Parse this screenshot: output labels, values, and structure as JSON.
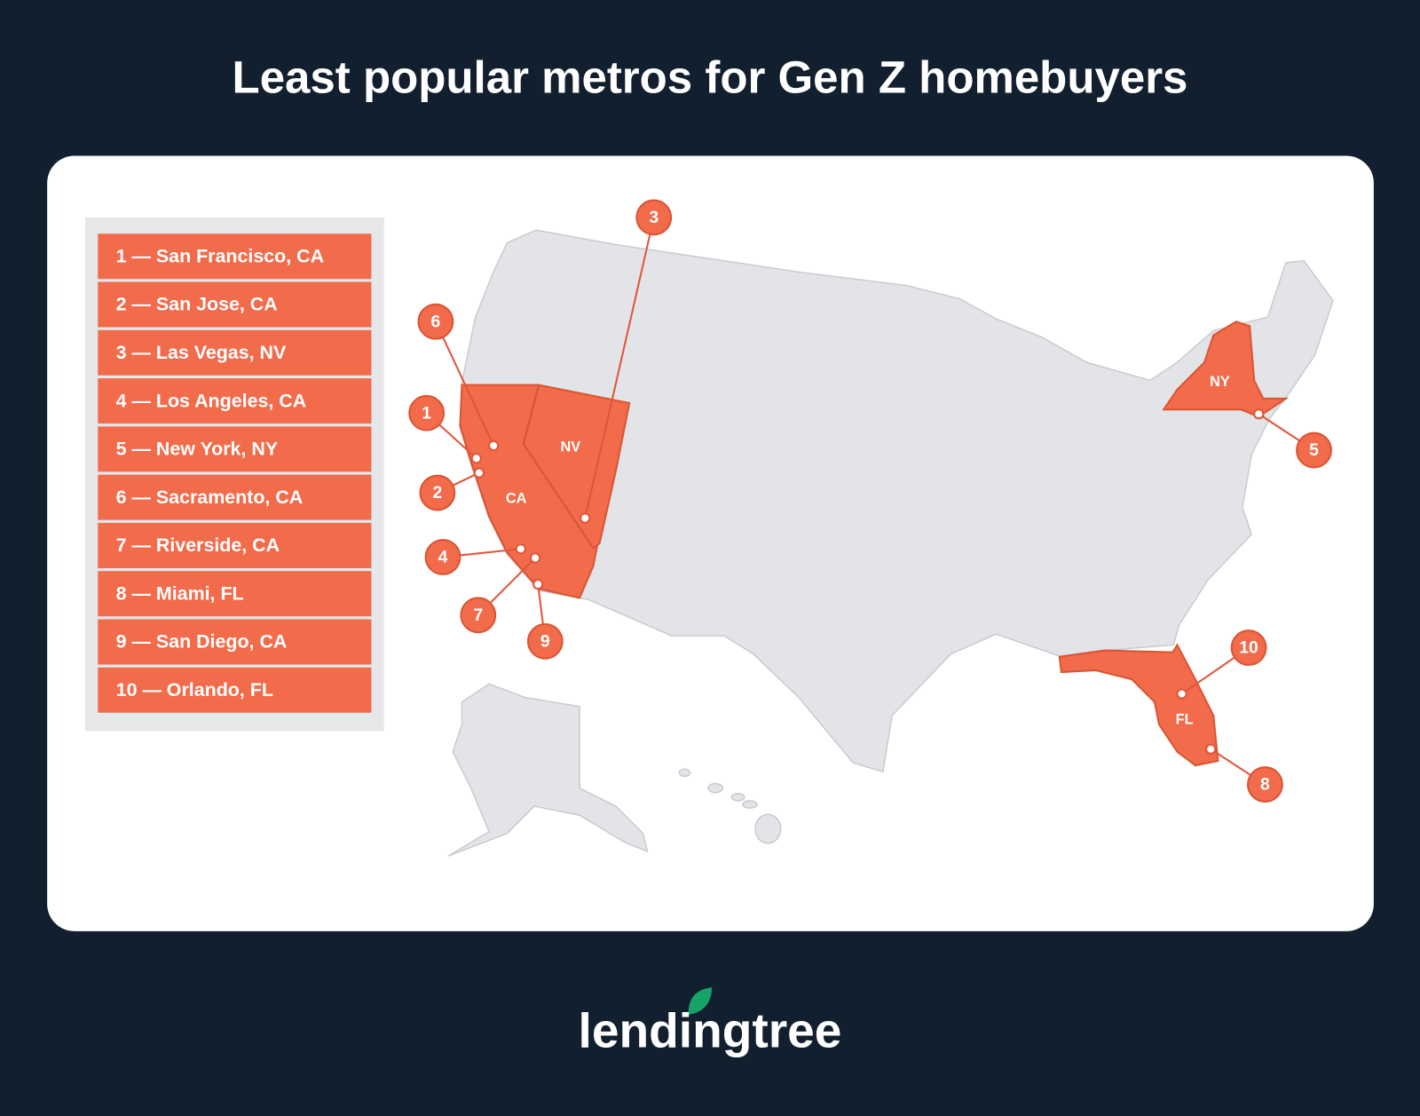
{
  "title": "Least popular metros for Gen Z homebuyers",
  "list": [
    "1 — San Francisco, CA",
    "2 — San Jose, CA",
    "3 — Las Vegas, NV",
    "4 — Los Angeles, CA",
    "5 — New York, NY",
    "6 — Sacramento, CA",
    "7 — Riverside, CA",
    "8 — Miami, FL",
    "9 — San Diego, CA",
    "10 — Orlando, FL"
  ],
  "markers": [
    "1",
    "2",
    "3",
    "4",
    "5",
    "6",
    "7",
    "8",
    "9",
    "10"
  ],
  "state_labels": [
    "CA",
    "NV",
    "NY",
    "FL"
  ],
  "logo": "lendingtree"
}
